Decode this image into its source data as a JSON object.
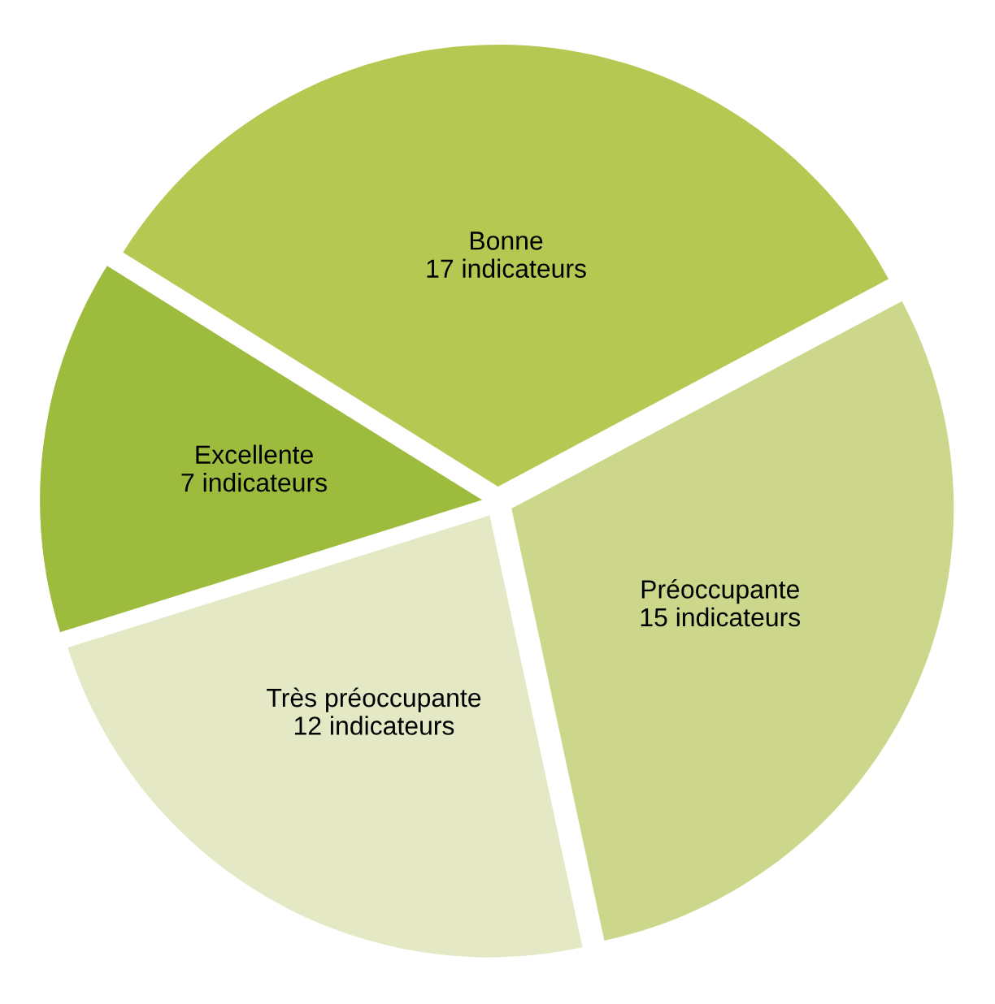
{
  "chart_data": {
    "type": "pie",
    "categories": [
      "Bonne",
      "Préoccupante",
      "Très préoccupante",
      "Excellente"
    ],
    "values": [
      17,
      15,
      12,
      7
    ],
    "value_labels": [
      "17 indicateurs",
      "15 indicateurs",
      "12 indicateurs",
      "7 indicateurs"
    ],
    "colors": [
      "#b5c952",
      "#cdd78c",
      "#e4e8c5",
      "#9dbb3c"
    ],
    "legend": false
  }
}
